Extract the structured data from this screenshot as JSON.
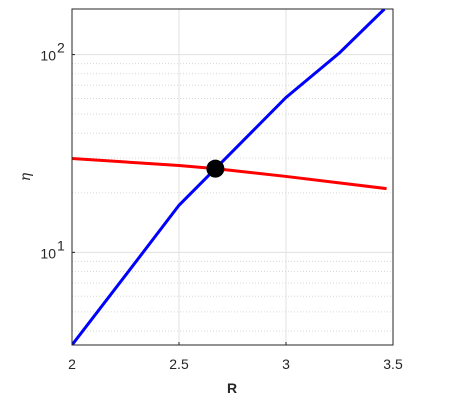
{
  "chart_data": {
    "type": "line",
    "x_label": "R",
    "y_label": "η",
    "log_y": true,
    "grid": true,
    "minor_grid": true,
    "xlim": [
      2,
      3.5
    ],
    "xticks": [
      2,
      2.5,
      3,
      3.5
    ],
    "ylim": [
      3.4,
      170
    ],
    "yticks": [
      {
        "value": 10,
        "label": "10",
        "exponent": "1"
      },
      {
        "value": 100,
        "label": "10",
        "exponent": "2"
      }
    ],
    "minor_yticks": [
      4,
      5,
      6,
      7,
      8,
      9,
      20,
      30,
      40,
      50,
      60,
      70,
      80,
      90
    ],
    "series": [
      {
        "color": "#0000ff",
        "x": [
          2.0,
          2.25,
          2.5,
          2.67,
          3.0,
          3.25,
          3.46
        ],
        "values": [
          3.4,
          7.65,
          17.3,
          26.5,
          60.7,
          102,
          170
        ]
      },
      {
        "color": "#ff0000",
        "x": [
          2.0,
          2.5,
          2.67,
          3.0,
          3.47
        ],
        "values": [
          29.8,
          27.5,
          26.5,
          24.2,
          21
        ]
      }
    ],
    "point": {
      "x": 2.67,
      "value": 26.5,
      "color": "#000000"
    }
  }
}
